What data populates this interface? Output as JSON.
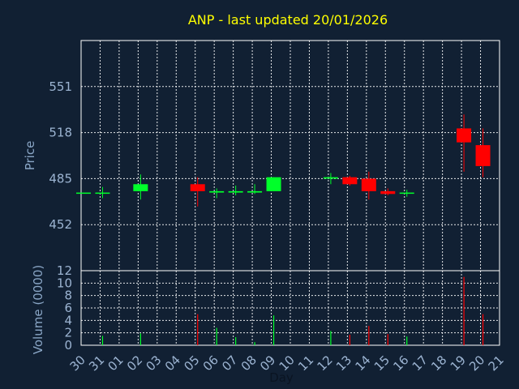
{
  "chart_data": [
    {
      "type": "candlestick",
      "title": "ANP - last updated 20/01/2026",
      "ylabel": "Price",
      "xlabel": "Day",
      "ylim": [
        419,
        584
      ],
      "yticks": [
        452,
        485,
        518,
        551
      ],
      "grid": true,
      "colors": {
        "up": "#00ff2a",
        "down": "#ff0000",
        "background": "#112033",
        "grid": "#ffffff",
        "title": "#ffff00"
      },
      "categories": [
        "30",
        "31",
        "01",
        "02",
        "03",
        "04",
        "05",
        "06",
        "07",
        "08",
        "09",
        "10",
        "11",
        "12",
        "13",
        "14",
        "15",
        "16",
        "17",
        "18",
        "19",
        "20",
        "21"
      ],
      "candles": [
        {
          "x": "30",
          "open": 475,
          "high": 475,
          "low": 475,
          "close": 475
        },
        {
          "x": "31",
          "open": 475,
          "high": 479,
          "low": 471,
          "close": 475
        },
        {
          "x": "02",
          "open": 476,
          "high": 488,
          "low": 470,
          "close": 481
        },
        {
          "x": "05",
          "open": 481,
          "high": 486,
          "low": 465,
          "close": 476
        },
        {
          "x": "06",
          "open": 475,
          "high": 478,
          "low": 471,
          "close": 476
        },
        {
          "x": "07",
          "open": 475,
          "high": 480,
          "low": 473,
          "close": 476
        },
        {
          "x": "08",
          "open": 475,
          "high": 481,
          "low": 474,
          "close": 476
        },
        {
          "x": "09",
          "open": 476,
          "high": 486,
          "low": 476,
          "close": 486
        },
        {
          "x": "12",
          "open": 485,
          "high": 489,
          "low": 481,
          "close": 486
        },
        {
          "x": "13",
          "open": 486,
          "high": 487,
          "low": 480,
          "close": 481
        },
        {
          "x": "14",
          "open": 485,
          "high": 490,
          "low": 470,
          "close": 476
        },
        {
          "x": "15",
          "open": 476,
          "high": 478,
          "low": 473,
          "close": 474
        },
        {
          "x": "16",
          "open": 475,
          "high": 477,
          "low": 472,
          "close": 475
        },
        {
          "x": "19",
          "open": 521,
          "high": 531,
          "low": 490,
          "close": 511
        },
        {
          "x": "20",
          "open": 509,
          "high": 521,
          "low": 486,
          "close": 494
        }
      ]
    },
    {
      "type": "bar",
      "ylabel": "Volume (0000)",
      "ylim": [
        0,
        12
      ],
      "yticks": [
        0,
        2,
        4,
        6,
        8,
        10,
        12
      ],
      "categories": [
        "30",
        "31",
        "01",
        "02",
        "03",
        "04",
        "05",
        "06",
        "07",
        "08",
        "09",
        "10",
        "11",
        "12",
        "13",
        "14",
        "15",
        "16",
        "17",
        "18",
        "19",
        "20",
        "21"
      ],
      "series": [
        {
          "values": [
            {
              "x": "31",
              "v": 1.5,
              "color": "#00ff2a"
            },
            {
              "x": "02",
              "v": 1.9,
              "color": "#00ff2a"
            },
            {
              "x": "05",
              "v": 5.0,
              "color": "#ff0000"
            },
            {
              "x": "06",
              "v": 2.8,
              "color": "#00ff2a"
            },
            {
              "x": "07",
              "v": 1.3,
              "color": "#00ff2a"
            },
            {
              "x": "08",
              "v": 0.5,
              "color": "#00ff2a"
            },
            {
              "x": "09",
              "v": 4.8,
              "color": "#00ff2a"
            },
            {
              "x": "12",
              "v": 2.3,
              "color": "#00ff2a"
            },
            {
              "x": "13",
              "v": 1.7,
              "color": "#ff0000"
            },
            {
              "x": "14",
              "v": 3.1,
              "color": "#ff0000"
            },
            {
              "x": "15",
              "v": 1.8,
              "color": "#ff0000"
            },
            {
              "x": "16",
              "v": 1.4,
              "color": "#00ff2a"
            },
            {
              "x": "19",
              "v": 11.0,
              "color": "#ff0000"
            },
            {
              "x": "20",
              "v": 5.0,
              "color": "#ff0000"
            }
          ]
        }
      ]
    }
  ]
}
